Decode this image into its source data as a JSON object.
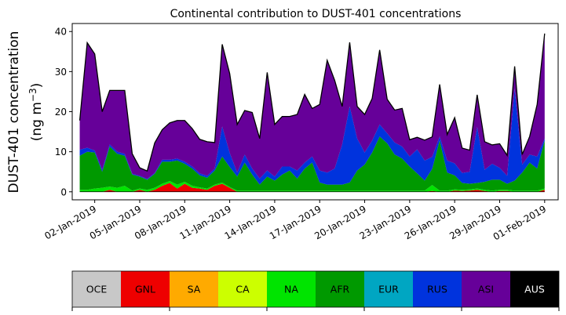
{
  "chart_data": {
    "type": "area",
    "stacked": true,
    "title": "Continental contribution to DUST-401 concentrations",
    "ylabel_line1": "DUST-401 concentration",
    "ylabel_line2_prefix": "(ng m",
    "ylabel_line2_exp": "−3",
    "ylabel_line2_suffix": ")",
    "xlabel": "",
    "ylim": [
      -2,
      42
    ],
    "yticks": [
      0,
      10,
      20,
      30,
      40
    ],
    "xlim_days": [
      -0.5,
      31.9
    ],
    "xticks": [
      {
        "day": 1,
        "label": "02-Jan-2019"
      },
      {
        "day": 4,
        "label": "05-Jan-2019"
      },
      {
        "day": 7,
        "label": "08-Jan-2019"
      },
      {
        "day": 10,
        "label": "11-Jan-2019"
      },
      {
        "day": 13,
        "label": "14-Jan-2019"
      },
      {
        "day": 16,
        "label": "17-Jan-2019"
      },
      {
        "day": 19,
        "label": "20-Jan-2019"
      },
      {
        "day": 22,
        "label": "23-Jan-2019"
      },
      {
        "day": 25,
        "label": "26-Jan-2019"
      },
      {
        "day": 28,
        "label": "29-Jan-2019"
      },
      {
        "day": 31,
        "label": "01-Feb-2019"
      }
    ],
    "x": [
      0,
      0.5,
      1,
      1.5,
      2,
      2.5,
      3,
      3.5,
      4,
      4.5,
      5,
      5.5,
      6,
      6.5,
      7,
      7.5,
      8,
      8.5,
      9,
      9.5,
      10,
      10.5,
      11,
      11.5,
      12,
      12.5,
      13,
      13.5,
      14,
      14.5,
      15,
      15.5,
      16,
      16.5,
      17,
      17.5,
      18,
      18.5,
      19,
      19.5,
      20,
      20.5,
      21,
      21.5,
      22,
      22.5,
      23,
      23.5,
      24,
      24.5,
      25,
      25.5,
      26,
      26.5,
      27,
      27.5,
      28,
      28.5,
      29,
      29.5,
      30,
      30.5,
      31
    ],
    "series": [
      {
        "name": "OCE",
        "color": "#c8c8c8",
        "values": [
          0,
          0,
          0,
          0,
          0,
          0,
          0,
          0,
          0,
          0,
          0,
          0,
          0,
          0,
          0,
          0,
          0,
          0,
          0,
          0,
          0,
          0,
          0,
          0,
          0,
          0,
          0,
          0,
          0,
          0,
          0,
          0,
          0,
          0,
          0,
          0,
          0,
          0,
          0,
          0,
          0,
          0,
          0,
          0,
          0,
          0,
          0,
          0,
          0,
          0,
          0,
          0,
          0,
          0,
          0,
          0,
          0,
          0,
          0,
          0,
          0,
          0,
          0
        ]
      },
      {
        "name": "GNL",
        "color": "#ee0000",
        "values": [
          0,
          0,
          0,
          0,
          0.5,
          0,
          0,
          0,
          0.5,
          0,
          0.5,
          1.5,
          2.2,
          0.8,
          2,
          1,
          0.8,
          0.5,
          1.5,
          2,
          1,
          0,
          0,
          0,
          0,
          0,
          0,
          0,
          0,
          0,
          0,
          0,
          0,
          0,
          0,
          0,
          0,
          0,
          0,
          0,
          0,
          0,
          0,
          0,
          0,
          0,
          0,
          0.2,
          0,
          0,
          0.3,
          0.2,
          0.3,
          0.5,
          0.2,
          0,
          0.2,
          0.2,
          0,
          0,
          0,
          0,
          0.5
        ]
      },
      {
        "name": "SA",
        "color": "#ffaa00",
        "values": [
          0,
          0,
          0,
          0,
          0,
          0,
          0,
          0,
          0,
          0,
          0,
          0,
          0,
          0,
          0,
          0,
          0,
          0,
          0,
          0,
          0,
          0,
          0,
          0,
          0,
          0,
          0,
          0,
          0,
          0,
          0,
          0,
          0,
          0,
          0,
          0,
          0,
          0,
          0,
          0,
          0,
          0,
          0,
          0,
          0,
          0,
          0,
          0,
          0,
          0,
          0,
          0,
          0,
          0,
          0,
          0,
          0,
          0,
          0,
          0,
          0,
          0,
          0
        ]
      },
      {
        "name": "CA",
        "color": "#ccff00",
        "values": [
          0,
          0,
          0,
          0,
          0,
          0,
          0,
          0,
          0,
          0,
          0,
          0,
          0,
          0,
          0,
          0,
          0,
          0,
          0,
          0,
          0,
          0,
          0,
          0,
          0,
          0,
          0,
          0,
          0,
          0,
          0,
          0,
          0,
          0,
          0,
          0,
          0,
          0,
          0,
          0,
          0,
          0,
          0,
          0,
          0,
          0,
          0,
          0,
          0,
          0,
          0,
          0,
          0,
          0,
          0,
          0,
          0,
          0,
          0,
          0,
          0,
          0,
          0
        ]
      },
      {
        "name": "NA",
        "color": "#00e400",
        "values": [
          0.5,
          0.5,
          0.8,
          1,
          0.8,
          1,
          1.5,
          0.3,
          0.3,
          0.5,
          0.5,
          0.5,
          0.5,
          1,
          0.5,
          0.5,
          0.3,
          0.3,
          0.3,
          0.3,
          0.2,
          0.3,
          0.3,
          0.3,
          0.3,
          0.3,
          0.3,
          0.3,
          0.3,
          0.3,
          0.3,
          0.3,
          0.3,
          0.3,
          0.3,
          0.3,
          0.3,
          0.3,
          0.3,
          0.3,
          0.3,
          0.3,
          0.3,
          0.3,
          0.3,
          0.3,
          0.3,
          1.5,
          0.3,
          0.3,
          0.3,
          0.3,
          0.3,
          0.3,
          0.3,
          0.3,
          0.3,
          0.3,
          0.3,
          0.3,
          0.3,
          0.3,
          0.3
        ]
      },
      {
        "name": "AFR",
        "color": "#009900",
        "values": [
          8.5,
          9.5,
          9,
          4,
          10,
          8.5,
          7.5,
          4,
          3,
          2.5,
          3.5,
          5.5,
          4.8,
          6,
          4.5,
          4.3,
          3,
          2.7,
          3.5,
          6.5,
          5,
          3.5,
          7,
          4,
          1.5,
          3.5,
          2.5,
          4,
          5,
          3,
          5.5,
          7,
          2,
          1.5,
          1.5,
          1.5,
          2,
          5,
          6.5,
          9.5,
          13.5,
          11.8,
          9,
          8,
          6,
          4.3,
          2.5,
          4,
          12.5,
          4.5,
          3.5,
          1.7,
          1.4,
          1.4,
          2,
          2.7,
          2.5,
          1.5,
          2.5,
          4.5,
          7,
          5.5,
          12
        ]
      },
      {
        "name": "EUR",
        "color": "#00a6c2",
        "values": [
          0,
          0,
          0,
          0,
          0,
          0,
          0,
          0,
          0,
          0,
          0,
          0,
          0,
          0,
          0,
          0,
          0,
          0,
          0,
          0,
          0,
          0,
          0,
          0,
          0,
          0,
          0,
          0,
          0,
          0,
          0,
          0,
          0,
          0,
          0,
          0,
          0,
          0,
          0,
          0,
          0,
          0,
          0,
          0,
          0,
          0,
          0,
          0,
          0,
          0,
          0,
          0,
          0,
          0,
          0,
          0,
          0,
          0,
          0,
          0,
          0,
          0,
          0
        ]
      },
      {
        "name": "RUS",
        "color": "#0033dd",
        "values": [
          1.5,
          1,
          0.5,
          0.5,
          0.5,
          0.5,
          0.5,
          0.2,
          0.2,
          0.2,
          0.2,
          0.5,
          0.5,
          0.5,
          0.5,
          0.5,
          0.5,
          0.5,
          0.5,
          7.5,
          3.5,
          1,
          2,
          1.5,
          1.5,
          1.5,
          1,
          2,
          1,
          2,
          1.5,
          1.5,
          3,
          3,
          4,
          10,
          19,
          8,
          3,
          3,
          3,
          2.5,
          3,
          3,
          2.5,
          6,
          5,
          3,
          1,
          3,
          3,
          2.5,
          3,
          14,
          3,
          4,
          3,
          2,
          23,
          2,
          2,
          3,
          0.5
        ]
      },
      {
        "name": "ASI",
        "color": "#660099",
        "values": [
          7.3,
          26.2,
          24.1,
          14.5,
          13.5,
          15.3,
          15.8,
          5,
          2,
          2,
          7.5,
          7.5,
          9.2,
          9.5,
          10.3,
          9.5,
          8.5,
          8.5,
          6.5,
          20.5,
          19.8,
          12,
          11,
          14,
          10,
          24.5,
          13,
          12.5,
          12.5,
          14,
          17,
          12,
          16.5,
          28,
          22,
          9.5,
          16,
          8,
          9.5,
          10.5,
          18.6,
          8.5,
          8.1,
          9.5,
          4.2,
          3,
          5.1,
          5,
          13,
          6.5,
          11.4,
          6.2,
          5.4,
          8,
          7,
          4.7,
          6,
          5.1,
          5.5,
          2.5,
          4.5,
          13,
          26.2
        ]
      },
      {
        "name": "AUS",
        "color": "#000000",
        "values": [
          0,
          0,
          0,
          0,
          0,
          0,
          0,
          0,
          0,
          0,
          0,
          0,
          0,
          0,
          0,
          0,
          0,
          0,
          0,
          0,
          0,
          0,
          0,
          0,
          0,
          0,
          0,
          0,
          0,
          0,
          0,
          0,
          0,
          0,
          0,
          0,
          0,
          0,
          0,
          0,
          0,
          0,
          0,
          0,
          0,
          0,
          0,
          0,
          0,
          0,
          0,
          0,
          0,
          0,
          0,
          0,
          0,
          0,
          0,
          0,
          0,
          0,
          0
        ]
      }
    ],
    "legend_placement": "bottom-colorbar",
    "legend_text_colors": [
      "#000000",
      "#000000",
      "#000000",
      "#000000",
      "#000000",
      "#000000",
      "#000000",
      "#000000",
      "#000000",
      "#ffffff"
    ],
    "grid": false
  }
}
